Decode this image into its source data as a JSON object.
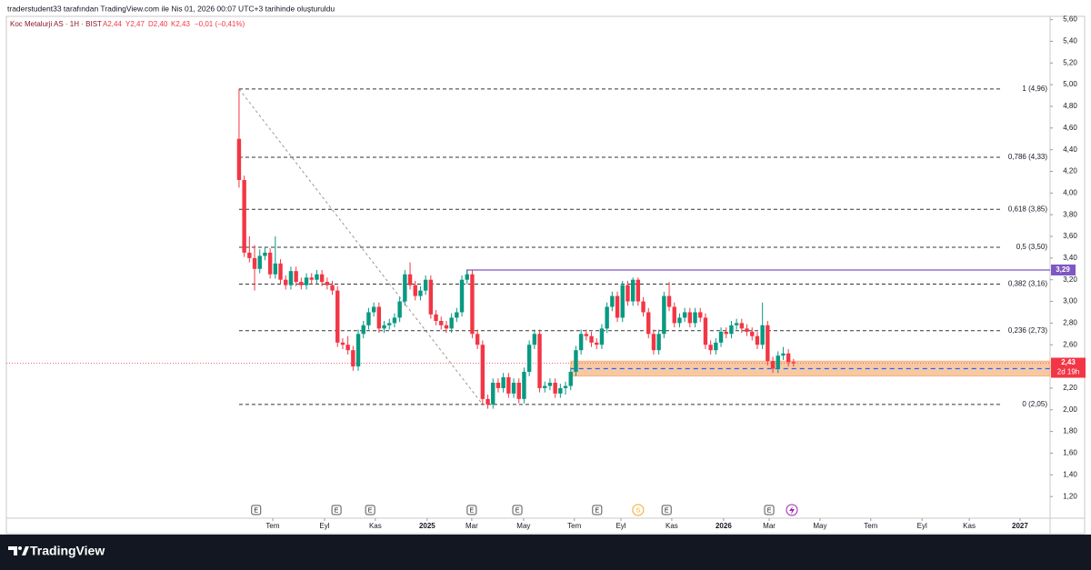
{
  "header": "traderstudent33 tarafından TradingView.com ile Nis 01, 2026 00:07 UTC+3 tarihinde oluşturuldu",
  "footer_logo": "TradingView",
  "chart_data": {
    "type": "candlestick",
    "legend": {
      "symbol": "Koc Metalurji AS · 1H · BIST",
      "open": "A2,44",
      "high": "Y2,47",
      "low": "D2,40",
      "close": "K2,43",
      "change": "−0,01 (−0,41%)"
    },
    "candles": [
      [
        4.5,
        4.96,
        4.05,
        4.12
      ],
      [
        4.12,
        4.16,
        3.41,
        3.45
      ],
      [
        3.45,
        3.6,
        3.36,
        3.4
      ],
      [
        3.4,
        3.52,
        3.1,
        3.3
      ],
      [
        3.3,
        3.48,
        3.26,
        3.42
      ],
      [
        3.42,
        3.5,
        3.38,
        3.45
      ],
      [
        3.45,
        3.49,
        3.21,
        3.25
      ],
      [
        3.25,
        3.6,
        3.21,
        3.35
      ],
      [
        3.35,
        3.39,
        3.16,
        3.2
      ],
      [
        3.2,
        3.24,
        3.11,
        3.15
      ],
      [
        3.15,
        3.32,
        3.11,
        3.28
      ],
      [
        3.28,
        3.32,
        3.14,
        3.18
      ],
      [
        3.18,
        3.22,
        3.11,
        3.15
      ],
      [
        3.15,
        3.26,
        3.11,
        3.22
      ],
      [
        3.22,
        3.26,
        3.16,
        3.2
      ],
      [
        3.2,
        3.29,
        3.16,
        3.25
      ],
      [
        3.25,
        3.29,
        3.14,
        3.18
      ],
      [
        3.18,
        3.22,
        3.11,
        3.15
      ],
      [
        3.15,
        3.19,
        3.06,
        3.1
      ],
      [
        3.1,
        3.14,
        2.58,
        2.62
      ],
      [
        2.62,
        2.66,
        2.56,
        2.6
      ],
      [
        2.6,
        2.68,
        2.51,
        2.55
      ],
      [
        2.55,
        2.59,
        2.36,
        2.4
      ],
      [
        2.4,
        2.74,
        2.36,
        2.7
      ],
      [
        2.7,
        2.82,
        2.66,
        2.78
      ],
      [
        2.78,
        2.94,
        2.74,
        2.9
      ],
      [
        2.9,
        2.99,
        2.86,
        2.95
      ],
      [
        2.95,
        2.99,
        2.71,
        2.75
      ],
      [
        2.75,
        2.82,
        2.71,
        2.78
      ],
      [
        2.78,
        2.84,
        2.74,
        2.8
      ],
      [
        2.8,
        2.89,
        2.76,
        2.85
      ],
      [
        2.85,
        3.04,
        2.81,
        3.0
      ],
      [
        3.0,
        3.29,
        2.96,
        3.25
      ],
      [
        3.25,
        3.36,
        3.11,
        3.15
      ],
      [
        3.15,
        3.19,
        3.01,
        3.05
      ],
      [
        3.05,
        3.14,
        3.01,
        3.1
      ],
      [
        3.1,
        3.24,
        3.06,
        3.2
      ],
      [
        3.2,
        3.24,
        2.84,
        2.88
      ],
      [
        2.88,
        2.92,
        2.78,
        2.82
      ],
      [
        2.82,
        2.86,
        2.74,
        2.78
      ],
      [
        2.78,
        2.82,
        2.71,
        2.75
      ],
      [
        2.75,
        2.89,
        2.71,
        2.85
      ],
      [
        2.85,
        2.94,
        2.81,
        2.9
      ],
      [
        2.9,
        3.24,
        2.86,
        3.2
      ],
      [
        3.2,
        3.29,
        3.16,
        3.25
      ],
      [
        3.25,
        3.29,
        2.66,
        2.7
      ],
      [
        2.7,
        2.74,
        2.56,
        2.6
      ],
      [
        2.6,
        2.64,
        2.05,
        2.1
      ],
      [
        2.1,
        2.14,
        2.01,
        2.05
      ],
      [
        2.05,
        2.29,
        2.01,
        2.25
      ],
      [
        2.25,
        2.29,
        2.16,
        2.2
      ],
      [
        2.2,
        2.34,
        2.16,
        2.3
      ],
      [
        2.3,
        2.34,
        2.11,
        2.15
      ],
      [
        2.15,
        2.29,
        2.11,
        2.25
      ],
      [
        2.25,
        2.29,
        2.06,
        2.1
      ],
      [
        2.1,
        2.39,
        2.06,
        2.35
      ],
      [
        2.35,
        2.64,
        2.31,
        2.6
      ],
      [
        2.6,
        2.74,
        2.56,
        2.7
      ],
      [
        2.7,
        2.74,
        2.16,
        2.2
      ],
      [
        2.2,
        2.26,
        2.16,
        2.22
      ],
      [
        2.22,
        2.29,
        2.18,
        2.25
      ],
      [
        2.25,
        2.29,
        2.11,
        2.15
      ],
      [
        2.15,
        2.24,
        2.11,
        2.2
      ],
      [
        2.2,
        2.26,
        2.14,
        2.22
      ],
      [
        2.22,
        2.39,
        2.18,
        2.35
      ],
      [
        2.35,
        2.59,
        2.31,
        2.55
      ],
      [
        2.55,
        2.74,
        2.51,
        2.7
      ],
      [
        2.7,
        2.74,
        2.64,
        2.68
      ],
      [
        2.68,
        2.72,
        2.58,
        2.62
      ],
      [
        2.62,
        2.66,
        2.56,
        2.6
      ],
      [
        2.6,
        2.79,
        2.56,
        2.75
      ],
      [
        2.75,
        2.99,
        2.71,
        2.95
      ],
      [
        2.95,
        3.09,
        2.91,
        3.05
      ],
      [
        3.05,
        3.09,
        2.81,
        2.85
      ],
      [
        2.85,
        3.19,
        2.81,
        3.15
      ],
      [
        3.15,
        3.19,
        2.96,
        3.0
      ],
      [
        3.0,
        3.22,
        2.96,
        3.2
      ],
      [
        3.2,
        3.22,
        2.96,
        3.0
      ],
      [
        3.0,
        3.04,
        2.86,
        2.9
      ],
      [
        2.9,
        2.94,
        2.66,
        2.7
      ],
      [
        2.7,
        2.74,
        2.51,
        2.55
      ],
      [
        2.55,
        2.74,
        2.51,
        2.7
      ],
      [
        2.7,
        3.09,
        2.66,
        3.05
      ],
      [
        3.05,
        3.18,
        2.91,
        2.95
      ],
      [
        2.95,
        2.99,
        2.76,
        2.8
      ],
      [
        2.8,
        2.89,
        2.76,
        2.85
      ],
      [
        2.85,
        2.94,
        2.81,
        2.9
      ],
      [
        2.9,
        2.94,
        2.76,
        2.8
      ],
      [
        2.8,
        2.94,
        2.76,
        2.9
      ],
      [
        2.9,
        2.94,
        2.81,
        2.85
      ],
      [
        2.85,
        2.89,
        2.56,
        2.6
      ],
      [
        2.6,
        2.64,
        2.51,
        2.55
      ],
      [
        2.55,
        2.66,
        2.51,
        2.62
      ],
      [
        2.62,
        2.76,
        2.58,
        2.72
      ],
      [
        2.72,
        2.76,
        2.66,
        2.7
      ],
      [
        2.7,
        2.82,
        2.66,
        2.78
      ],
      [
        2.78,
        2.84,
        2.74,
        2.8
      ],
      [
        2.8,
        2.84,
        2.71,
        2.75
      ],
      [
        2.75,
        2.79,
        2.68,
        2.72
      ],
      [
        2.72,
        2.76,
        2.64,
        2.68
      ],
      [
        2.68,
        2.72,
        2.56,
        2.6
      ],
      [
        2.6,
        2.99,
        2.56,
        2.78
      ],
      [
        2.78,
        2.82,
        2.41,
        2.45
      ],
      [
        2.45,
        2.49,
        2.34,
        2.38
      ],
      [
        2.38,
        2.54,
        2.34,
        2.5
      ],
      [
        2.5,
        2.58,
        2.46,
        2.52
      ],
      [
        2.52,
        2.56,
        2.4,
        2.44
      ],
      [
        2.44,
        2.47,
        2.4,
        2.43
      ]
    ],
    "up_color": "#089981",
    "down_color": "#f23645",
    "xlim": [
      -44.9,
      156.5
    ],
    "xticks": [
      {
        "value": 6.5,
        "label": "Tem"
      },
      {
        "value": 16.5,
        "label": "Eyl"
      },
      {
        "value": 26.3,
        "label": "Kas"
      },
      {
        "value": 36.3,
        "label": "2025"
      },
      {
        "value": 44.9,
        "label": "Mar"
      },
      {
        "value": 54.9,
        "label": "May"
      },
      {
        "value": 64.7,
        "label": "Tem"
      },
      {
        "value": 73.7,
        "label": "Eyl"
      },
      {
        "value": 83.5,
        "label": "Kas"
      },
      {
        "value": 93.5,
        "label": "2026"
      },
      {
        "value": 102.3,
        "label": "Mar"
      },
      {
        "value": 112.1,
        "label": "May"
      },
      {
        "value": 121.9,
        "label": "Tem"
      },
      {
        "value": 131.8,
        "label": "Eyl"
      },
      {
        "value": 140.9,
        "label": "Kas"
      },
      {
        "value": 150.7,
        "label": "2027"
      }
    ],
    "ylim": [
      1.0,
      5.63
    ],
    "yticks": [
      {
        "value": 5.6,
        "label": "5,60"
      },
      {
        "value": 5.4,
        "label": "5,40"
      },
      {
        "value": 5.2,
        "label": "5,20"
      },
      {
        "value": 5.0,
        "label": "5,00"
      },
      {
        "value": 4.8,
        "label": "4,80"
      },
      {
        "value": 4.6,
        "label": "4,60"
      },
      {
        "value": 4.4,
        "label": "4,40"
      },
      {
        "value": 4.2,
        "label": "4,20"
      },
      {
        "value": 4.0,
        "label": "4,00"
      },
      {
        "value": 3.8,
        "label": "3,80"
      },
      {
        "value": 3.6,
        "label": "3,60"
      },
      {
        "value": 3.4,
        "label": "3,40"
      },
      {
        "value": 3.2,
        "label": "3,20"
      },
      {
        "value": 3.0,
        "label": "3,00"
      },
      {
        "value": 2.8,
        "label": "2,80"
      },
      {
        "value": 2.6,
        "label": "2,60"
      },
      {
        "value": 2.4,
        "label": "2,40"
      },
      {
        "value": 2.2,
        "label": "2,20"
      },
      {
        "value": 2.0,
        "label": "2,00"
      },
      {
        "value": 1.8,
        "label": "1,80"
      },
      {
        "value": 1.6,
        "label": "1,60"
      },
      {
        "value": 1.4,
        "label": "1,40"
      },
      {
        "value": 1.2,
        "label": "1,20"
      }
    ],
    "fib": {
      "from": [
        0,
        4.96
      ],
      "to": [
        47,
        2.05
      ],
      "levels": [
        {
          "value": 4.96,
          "label": "1 (4,96)"
        },
        {
          "value": 4.33,
          "label": "0,786 (4,33)"
        },
        {
          "value": 3.85,
          "label": "0,618 (3,85)"
        },
        {
          "value": 3.5,
          "label": "0,5 (3,50)"
        },
        {
          "value": 3.16,
          "label": "0,382 (3,16)"
        },
        {
          "value": 2.73,
          "label": "0,236 (2,73)"
        },
        {
          "value": 2.05,
          "label": "0 (2,05)"
        }
      ]
    },
    "resistance": {
      "from": 44,
      "value": 3.29,
      "label": "3,29",
      "color": "#7e57c2"
    },
    "zone": {
      "from": 64,
      "top": 2.45,
      "bottom": 2.31,
      "color": "#f7c9a3"
    },
    "target": {
      "from": 64,
      "value": 2.38,
      "color": "#2962ff"
    },
    "last_price": {
      "value": 2.43,
      "label": "2,43",
      "countdown": "2d 19h"
    },
    "events": [
      {
        "x": 3.3,
        "label": "E"
      },
      {
        "x": 18.8,
        "label": "E"
      },
      {
        "x": 25.3,
        "label": "E"
      },
      {
        "x": 44.9,
        "label": "E"
      },
      {
        "x": 53.7,
        "label": "E"
      },
      {
        "x": 69.1,
        "label": "E"
      },
      {
        "x": 77,
        "label": "S"
      },
      {
        "x": 82.5,
        "label": "E"
      },
      {
        "x": 102.3,
        "label": "E"
      }
    ]
  }
}
